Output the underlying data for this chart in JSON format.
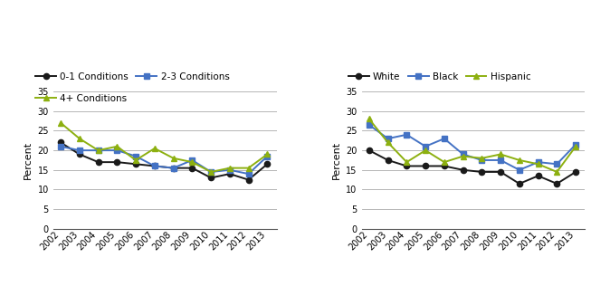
{
  "years": [
    2002,
    2003,
    2004,
    2005,
    2006,
    2007,
    2008,
    2009,
    2010,
    2011,
    2012,
    2013
  ],
  "chart1": {
    "cond_01": [
      22,
      19,
      17,
      17,
      16.5,
      16,
      15.5,
      15.5,
      13,
      14,
      12.5,
      16.5
    ],
    "cond_23": [
      21,
      20,
      20,
      20,
      18.5,
      16,
      15.5,
      17.5,
      14.5,
      15,
      14,
      18.5
    ],
    "cond_4p": [
      27,
      23,
      20,
      21,
      17.5,
      20.5,
      18,
      17,
      14.5,
      15.5,
      15.5,
      19
    ]
  },
  "chart2": {
    "white": [
      20,
      17.5,
      16,
      16,
      16,
      15,
      14.5,
      14.5,
      11.5,
      13.5,
      11.5,
      14.5
    ],
    "black": [
      26.5,
      23,
      24,
      21,
      23,
      19,
      17.5,
      17.5,
      15,
      17,
      16.5,
      21.5
    ],
    "hispanic": [
      28,
      22,
      17,
      20,
      17,
      18.5,
      18,
      19,
      17.5,
      16.5,
      14.5,
      21
    ]
  },
  "colors": {
    "black_line": "#1a1a1a",
    "blue_line": "#4472c4",
    "olive_line": "#8db010"
  },
  "legend1": {
    "entries": [
      "0-1 Conditions",
      "2-3 Conditions",
      "4+ Conditions"
    ]
  },
  "legend2": {
    "entries": [
      "White",
      "Black",
      "Hispanic"
    ]
  },
  "ylabel": "Percent",
  "ylim": [
    0,
    35
  ],
  "yticks": [
    0,
    5,
    10,
    15,
    20,
    25,
    30,
    35
  ]
}
